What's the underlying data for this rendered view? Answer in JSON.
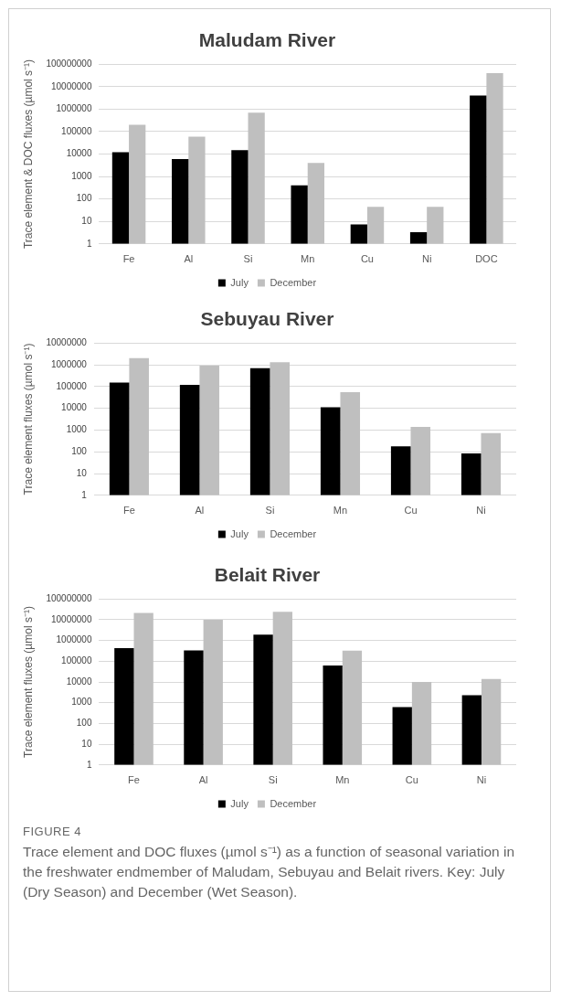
{
  "chart_data": [
    {
      "type": "bar",
      "title": "Maludam River",
      "ylabel": "Trace element & DOC fluxes (µmol s⁻¹)",
      "categories": [
        "Fe",
        "Al",
        "Si",
        "Mn",
        "Cu",
        "Ni",
        "DOC"
      ],
      "log": true,
      "ylim": [
        1,
        100000000
      ],
      "yticks": [
        1,
        10,
        100,
        1000,
        10000,
        100000,
        1000000,
        10000000,
        100000000
      ],
      "grid": "y",
      "legend": "bottom",
      "series": [
        {
          "name": "July",
          "color": "#000000",
          "values": [
            12000,
            6000,
            15000,
            400,
            7.4,
            3.3,
            4000000
          ]
        },
        {
          "name": "December",
          "color": "#bfbfbf",
          "values": [
            200000,
            60000,
            700000,
            4000,
            45,
            45,
            40000000
          ]
        }
      ]
    },
    {
      "type": "bar",
      "title": "Sebuyau River",
      "ylabel": "Trace element fluxes (µmol s⁻¹)",
      "categories": [
        "Fe",
        "Al",
        "Si",
        "Mn",
        "Cu",
        "Ni"
      ],
      "log": true,
      "ylim": [
        1,
        10000000
      ],
      "yticks": [
        1,
        10,
        100,
        1000,
        10000,
        100000,
        1000000,
        10000000
      ],
      "grid": "y",
      "legend": "bottom",
      "series": [
        {
          "name": "July",
          "color": "#000000",
          "values": [
            150000,
            120000,
            700000,
            11000,
            180,
            85
          ]
        },
        {
          "name": "December",
          "color": "#bfbfbf",
          "values": [
            2000000,
            900000,
            1300000,
            55000,
            1400,
            730
          ]
        }
      ]
    },
    {
      "type": "bar",
      "title": "Belait River",
      "ylabel": "Trace element fluxes (µmol s⁻¹)",
      "categories": [
        "Fe",
        "Al",
        "Si",
        "Mn",
        "Cu",
        "Ni"
      ],
      "log": true,
      "ylim": [
        1,
        100000000
      ],
      "yticks": [
        1,
        10,
        100,
        1000,
        10000,
        100000,
        1000000,
        10000000,
        100000000
      ],
      "grid": "y",
      "legend": "bottom",
      "series": [
        {
          "name": "July",
          "color": "#000000",
          "values": [
            430000,
            330000,
            1900000,
            62000,
            620,
            2300
          ]
        },
        {
          "name": "December",
          "color": "#bfbfbf",
          "values": [
            21000000,
            10000000,
            24000000,
            320000,
            10000,
            14000
          ]
        }
      ],
      "annotations": [
        "FIGURE 4",
        "Trace element and DOC fluxes (µmol s⁻¹) as a function of seasonal variation in the freshwater endmember of Maludam, Sebuyau and Belait rivers. Key: July (Dry Season) and December (Wet Season)."
      ]
    }
  ]
}
